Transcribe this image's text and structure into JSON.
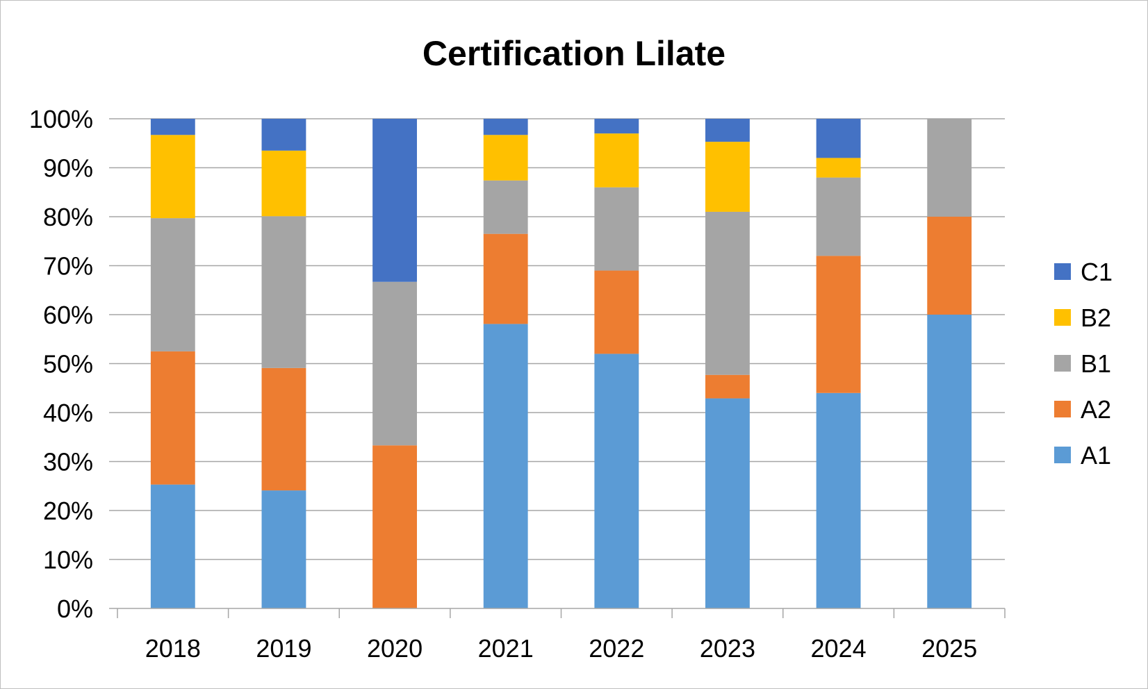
{
  "chart_data": {
    "type": "bar",
    "stacked": true,
    "percent": true,
    "title": "Certification Lilate",
    "xlabel": "",
    "ylabel": "",
    "categories": [
      "2018",
      "2019",
      "2020",
      "2021",
      "2022",
      "2023",
      "2024",
      "2025"
    ],
    "ylim": [
      0,
      100
    ],
    "yticks": [
      "0%",
      "10%",
      "20%",
      "30%",
      "40%",
      "50%",
      "60%",
      "70%",
      "80%",
      "90%",
      "100%"
    ],
    "grid": true,
    "legend_position": "right",
    "series": [
      {
        "name": "A1",
        "color": "#5B9BD5",
        "values": [
          25.3,
          24.1,
          0,
          58.1,
          52.0,
          42.9,
          44.0,
          60.0
        ]
      },
      {
        "name": "A2",
        "color": "#ED7D31",
        "values": [
          27.2,
          25.0,
          33.3,
          18.4,
          17.0,
          4.8,
          28.0,
          20.0
        ]
      },
      {
        "name": "B1",
        "color": "#A5A5A5",
        "values": [
          27.2,
          31.0,
          33.4,
          10.9,
          17.0,
          33.3,
          16.0,
          20.0
        ]
      },
      {
        "name": "B2",
        "color": "#FFC000",
        "values": [
          17.0,
          13.4,
          0,
          9.3,
          11.0,
          14.3,
          4.0,
          0
        ]
      },
      {
        "name": "C1",
        "color": "#4472C4",
        "values": [
          3.3,
          6.5,
          33.3,
          3.3,
          3.0,
          4.7,
          8.0,
          0
        ]
      }
    ]
  }
}
